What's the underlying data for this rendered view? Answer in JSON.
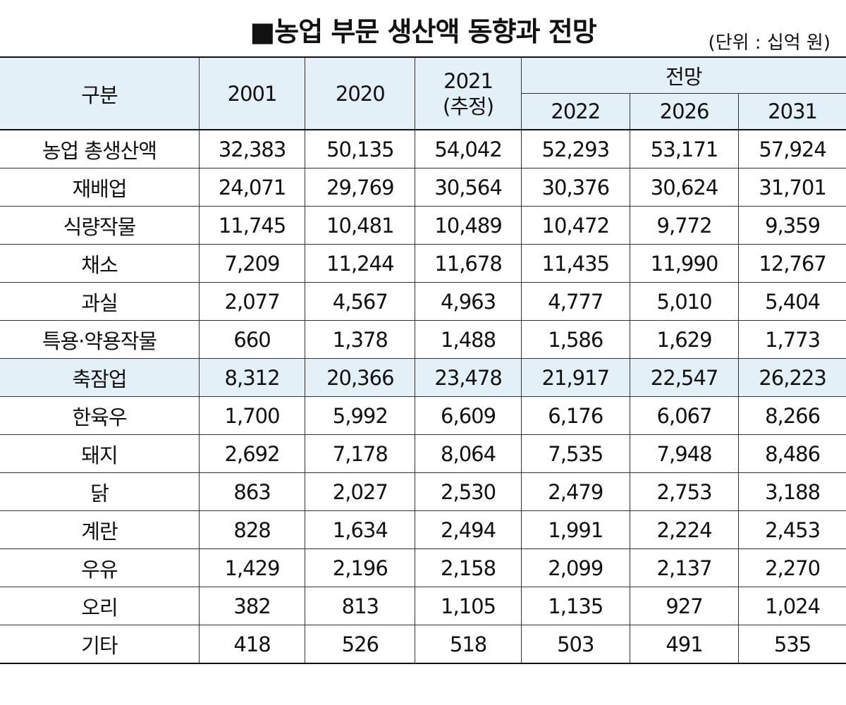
{
  "title": "■농업 부문 생산액 동향과 전망",
  "unit": "(단위 : 십억 원)",
  "chart_data": {
    "type": "table",
    "title": "■농업 부문 생산액 동향과 전망",
    "unit": "(단위 : 십억 원)",
    "header": {
      "category": "구분",
      "forecast_group": "전망",
      "years": [
        "2001",
        "2020",
        "2021",
        "2022",
        "2026",
        "2031"
      ],
      "estimate_note": "(추정)"
    },
    "rows": [
      {
        "name": "농업 총생산액",
        "values": [
          "32,383",
          "50,135",
          "54,042",
          "52,293",
          "53,171",
          "57,924"
        ]
      },
      {
        "name": "재배업",
        "values": [
          "24,071",
          "29,769",
          "30,564",
          "30,376",
          "30,624",
          "31,701"
        ]
      },
      {
        "name": "식량작물",
        "values": [
          "11,745",
          "10,481",
          "10,489",
          "10,472",
          "9,772",
          "9,359"
        ]
      },
      {
        "name": "채소",
        "values": [
          "7,209",
          "11,244",
          "11,678",
          "11,435",
          "11,990",
          "12,767"
        ]
      },
      {
        "name": "과실",
        "values": [
          "2,077",
          "4,567",
          "4,963",
          "4,777",
          "5,010",
          "5,404"
        ]
      },
      {
        "name": "특용·약용작물",
        "values": [
          "660",
          "1,378",
          "1,488",
          "1,586",
          "1,629",
          "1,773"
        ]
      },
      {
        "name": "축잠업",
        "values": [
          "8,312",
          "20,366",
          "23,478",
          "21,917",
          "22,547",
          "26,223"
        ]
      },
      {
        "name": "한육우",
        "values": [
          "1,700",
          "5,992",
          "6,609",
          "6,176",
          "6,067",
          "8,266"
        ]
      },
      {
        "name": "돼지",
        "values": [
          "2,692",
          "7,178",
          "8,064",
          "7,535",
          "7,948",
          "8,486"
        ]
      },
      {
        "name": "닭",
        "values": [
          "863",
          "2,027",
          "2,530",
          "2,479",
          "2,753",
          "3,188"
        ]
      },
      {
        "name": "계란",
        "values": [
          "828",
          "1,634",
          "2,494",
          "1,991",
          "2,224",
          "2,453"
        ]
      },
      {
        "name": "우유",
        "values": [
          "1,429",
          "2,196",
          "2,158",
          "2,099",
          "2,137",
          "2,270"
        ]
      },
      {
        "name": "오리",
        "values": [
          "382",
          "813",
          "1,105",
          "1,135",
          "927",
          "1,024"
        ]
      },
      {
        "name": "기타",
        "values": [
          "418",
          "526",
          "518",
          "503",
          "491",
          "535"
        ]
      }
    ],
    "highlight_rows": [
      "축잠업"
    ],
    "colors": {
      "header_bg": "#e4f0f7",
      "highlight_bg": "#e4f0f7",
      "rule": "#333333"
    }
  }
}
